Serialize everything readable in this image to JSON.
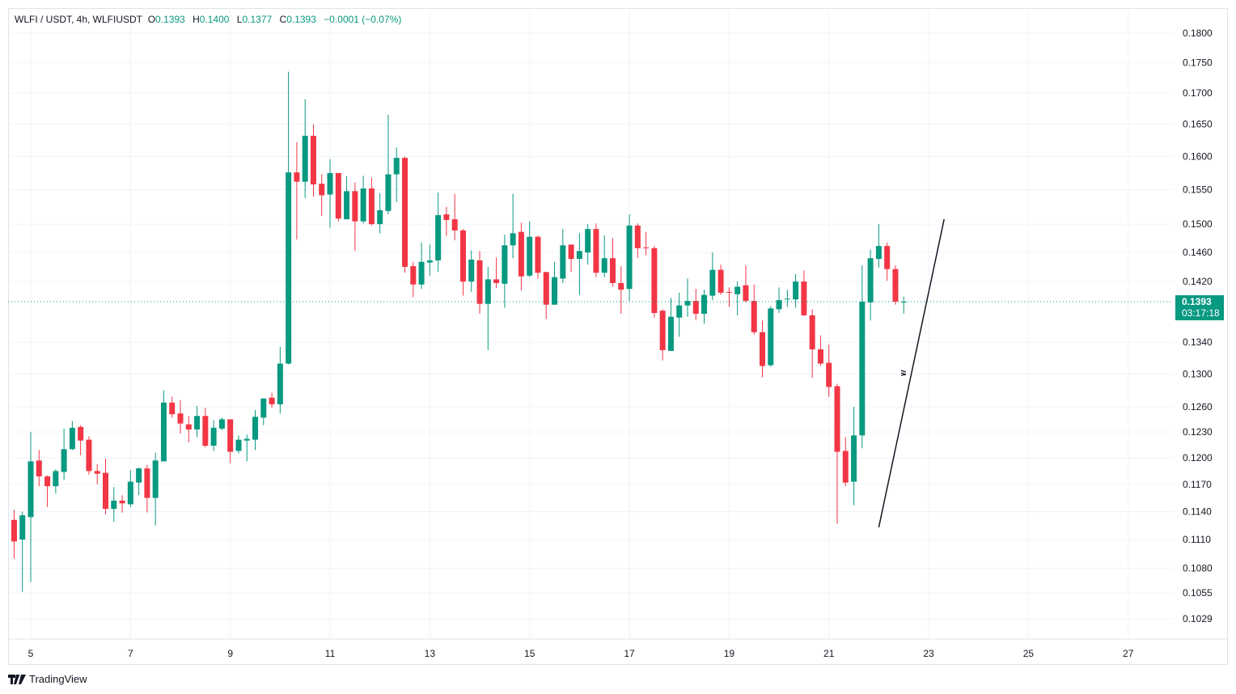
{
  "header": {
    "symbol": "WLFI / USDT, 4h, WLFIUSDT",
    "o_label": "O",
    "o_value": "0.1393",
    "h_label": "H",
    "h_value": "0.1400",
    "l_label": "L",
    "l_value": "0.1377",
    "c_label": "C",
    "c_value": "0.1393",
    "change": "−0.0001 (−0.07%)"
  },
  "last_price": {
    "value": "0.1393",
    "countdown": "03:17:18"
  },
  "brand": "TradingView",
  "colors": {
    "up": "#089981",
    "down": "#f23645",
    "grid": "#f0f3fa",
    "text": "#131722"
  },
  "chart_data": {
    "type": "candlestick",
    "interval_hours": 4,
    "first_candle_day": 4.6667,
    "y_scale": "log",
    "grid": true,
    "y_ticks": [
      "0.1800",
      "0.1750",
      "0.1700",
      "0.1650",
      "0.1600",
      "0.1550",
      "0.1500",
      "0.1460",
      "0.1420",
      "0.1340",
      "0.1300",
      "0.1260",
      "0.1230",
      "0.1200",
      "0.1170",
      "0.1140",
      "0.1110",
      "0.1080",
      "0.1055",
      "0.1029"
    ],
    "x_ticks": [
      "5",
      "7",
      "9",
      "11",
      "13",
      "15",
      "17",
      "19",
      "21",
      "23",
      "25",
      "27"
    ],
    "ohlc": [
      [
        0.1131,
        0.1142,
        0.109,
        0.1108
      ],
      [
        0.111,
        0.114,
        0.1056,
        0.1136
      ],
      [
        0.1134,
        0.123,
        0.1066,
        0.1196
      ],
      [
        0.1197,
        0.1209,
        0.1168,
        0.1179
      ],
      [
        0.1179,
        0.118,
        0.1145,
        0.1168
      ],
      [
        0.1168,
        0.1187,
        0.116,
        0.1185
      ],
      [
        0.1184,
        0.1234,
        0.1175,
        0.121
      ],
      [
        0.121,
        0.1243,
        0.1209,
        0.1235
      ],
      [
        0.1236,
        0.1238,
        0.1203,
        0.122
      ],
      [
        0.1221,
        0.1225,
        0.1181,
        0.1185
      ],
      [
        0.1185,
        0.1193,
        0.117,
        0.1182
      ],
      [
        0.1183,
        0.1199,
        0.1137,
        0.1143
      ],
      [
        0.1143,
        0.1167,
        0.1129,
        0.1152
      ],
      [
        0.1152,
        0.1158,
        0.1139,
        0.1149
      ],
      [
        0.1148,
        0.1186,
        0.1145,
        0.1173
      ],
      [
        0.1172,
        0.1189,
        0.1158,
        0.1188
      ],
      [
        0.1188,
        0.1192,
        0.1139,
        0.1155
      ],
      [
        0.1155,
        0.1206,
        0.1125,
        0.1197
      ],
      [
        0.1196,
        0.128,
        0.1196,
        0.1265
      ],
      [
        0.1265,
        0.1272,
        0.1247,
        0.1251
      ],
      [
        0.1252,
        0.1268,
        0.1228,
        0.124
      ],
      [
        0.1239,
        0.1249,
        0.1218,
        0.1233
      ],
      [
        0.1233,
        0.1261,
        0.1224,
        0.1249
      ],
      [
        0.1249,
        0.1259,
        0.1212,
        0.1214
      ],
      [
        0.1214,
        0.1244,
        0.1208,
        0.1235
      ],
      [
        0.1234,
        0.1247,
        0.1232,
        0.1245
      ],
      [
        0.1245,
        0.1245,
        0.1194,
        0.1207
      ],
      [
        0.1208,
        0.1226,
        0.1205,
        0.1221
      ],
      [
        0.122,
        0.1227,
        0.1196,
        0.1222
      ],
      [
        0.1221,
        0.1256,
        0.1209,
        0.1248
      ],
      [
        0.1247,
        0.127,
        0.1238,
        0.127
      ],
      [
        0.1271,
        0.1277,
        0.1259,
        0.1263
      ],
      [
        0.1263,
        0.1334,
        0.1252,
        0.1313
      ],
      [
        0.1313,
        0.1735,
        0.1312,
        0.1576
      ],
      [
        0.1576,
        0.1622,
        0.1478,
        0.1562
      ],
      [
        0.1562,
        0.169,
        0.1538,
        0.1632
      ],
      [
        0.1632,
        0.165,
        0.154,
        0.1558
      ],
      [
        0.1559,
        0.1573,
        0.1512,
        0.1542
      ],
      [
        0.1543,
        0.1596,
        0.1495,
        0.1575
      ],
      [
        0.1575,
        0.1575,
        0.1504,
        0.1508
      ],
      [
        0.1507,
        0.157,
        0.1507,
        0.1548
      ],
      [
        0.1548,
        0.1561,
        0.1462,
        0.1504
      ],
      [
        0.1504,
        0.1571,
        0.1501,
        0.1552
      ],
      [
        0.1552,
        0.1568,
        0.1498,
        0.15
      ],
      [
        0.15,
        0.1545,
        0.1487,
        0.152
      ],
      [
        0.1519,
        0.1665,
        0.1514,
        0.1573
      ],
      [
        0.1573,
        0.1614,
        0.1532,
        0.1598
      ],
      [
        0.1598,
        0.16,
        0.1432,
        0.144
      ],
      [
        0.1441,
        0.1447,
        0.1399,
        0.1416
      ],
      [
        0.1416,
        0.1474,
        0.141,
        0.1447
      ],
      [
        0.1446,
        0.1471,
        0.1428,
        0.1449
      ],
      [
        0.1449,
        0.1546,
        0.1433,
        0.1513
      ],
      [
        0.1514,
        0.1525,
        0.1483,
        0.1506
      ],
      [
        0.1507,
        0.1544,
        0.1477,
        0.1491
      ],
      [
        0.1491,
        0.1493,
        0.1401,
        0.142
      ],
      [
        0.142,
        0.1463,
        0.1406,
        0.145
      ],
      [
        0.1449,
        0.1462,
        0.1377,
        0.139
      ],
      [
        0.139,
        0.144,
        0.133,
        0.1423
      ],
      [
        0.1423,
        0.1453,
        0.1411,
        0.1418
      ],
      [
        0.1417,
        0.1485,
        0.1385,
        0.147
      ],
      [
        0.147,
        0.1544,
        0.1452,
        0.1487
      ],
      [
        0.1489,
        0.1502,
        0.1408,
        0.1427
      ],
      [
        0.1428,
        0.1504,
        0.1426,
        0.1482
      ],
      [
        0.1482,
        0.1484,
        0.1424,
        0.1432
      ],
      [
        0.1433,
        0.1433,
        0.137,
        0.1389
      ],
      [
        0.1389,
        0.1447,
        0.1389,
        0.1426
      ],
      [
        0.1424,
        0.1493,
        0.1418,
        0.147
      ],
      [
        0.1471,
        0.1471,
        0.1433,
        0.1451
      ],
      [
        0.1451,
        0.1487,
        0.1402,
        0.1462
      ],
      [
        0.146,
        0.15,
        0.1443,
        0.1493
      ],
      [
        0.1493,
        0.1501,
        0.1426,
        0.1432
      ],
      [
        0.1432,
        0.1484,
        0.1426,
        0.1452
      ],
      [
        0.1452,
        0.148,
        0.1413,
        0.1418
      ],
      [
        0.1418,
        0.1441,
        0.1377,
        0.1409
      ],
      [
        0.141,
        0.1514,
        0.1394,
        0.1498
      ],
      [
        0.1498,
        0.1501,
        0.1452,
        0.1466
      ],
      [
        0.1467,
        0.1489,
        0.1456,
        0.1466
      ],
      [
        0.1466,
        0.1469,
        0.1372,
        0.1378
      ],
      [
        0.1381,
        0.1383,
        0.1317,
        0.133
      ],
      [
        0.1329,
        0.1398,
        0.1329,
        0.1373
      ],
      [
        0.1372,
        0.1405,
        0.1347,
        0.1388
      ],
      [
        0.1388,
        0.1424,
        0.1373,
        0.1394
      ],
      [
        0.1394,
        0.141,
        0.1369,
        0.1377
      ],
      [
        0.1377,
        0.1409,
        0.1364,
        0.1402
      ],
      [
        0.1401,
        0.146,
        0.1395,
        0.1436
      ],
      [
        0.1436,
        0.1443,
        0.1402,
        0.1405
      ],
      [
        0.1406,
        0.1412,
        0.1386,
        0.1405
      ],
      [
        0.1403,
        0.142,
        0.1375,
        0.1413
      ],
      [
        0.1415,
        0.1442,
        0.1392,
        0.1394
      ],
      [
        0.1394,
        0.1416,
        0.135,
        0.1353
      ],
      [
        0.1353,
        0.1368,
        0.1296,
        0.131
      ],
      [
        0.1311,
        0.1387,
        0.1309,
        0.1384
      ],
      [
        0.1383,
        0.1412,
        0.1378,
        0.1395
      ],
      [
        0.1396,
        0.1409,
        0.1386,
        0.1397
      ],
      [
        0.1396,
        0.143,
        0.1385,
        0.142
      ],
      [
        0.142,
        0.1435,
        0.1374,
        0.1375
      ],
      [
        0.1375,
        0.1383,
        0.1295,
        0.1331
      ],
      [
        0.1331,
        0.1349,
        0.131,
        0.1313
      ],
      [
        0.1314,
        0.1337,
        0.1272,
        0.1284
      ],
      [
        0.1285,
        0.1288,
        0.1127,
        0.1207
      ],
      [
        0.1208,
        0.1224,
        0.1168,
        0.1172
      ],
      [
        0.1173,
        0.126,
        0.1147,
        0.1226
      ],
      [
        0.1226,
        0.1442,
        0.1211,
        0.1393
      ],
      [
        0.1392,
        0.1464,
        0.1368,
        0.1452
      ],
      [
        0.1451,
        0.15,
        0.1439,
        0.1469
      ],
      [
        0.1469,
        0.1474,
        0.1421,
        0.1437
      ],
      [
        0.1437,
        0.1442,
        0.1389,
        0.1393
      ],
      [
        0.1393,
        0.14,
        0.1377,
        0.1393
      ]
    ],
    "trendline": {
      "start": {
        "day": 22.0,
        "price": 0.1123
      },
      "end": {
        "day": 23.31,
        "price": 0.1507
      }
    }
  }
}
